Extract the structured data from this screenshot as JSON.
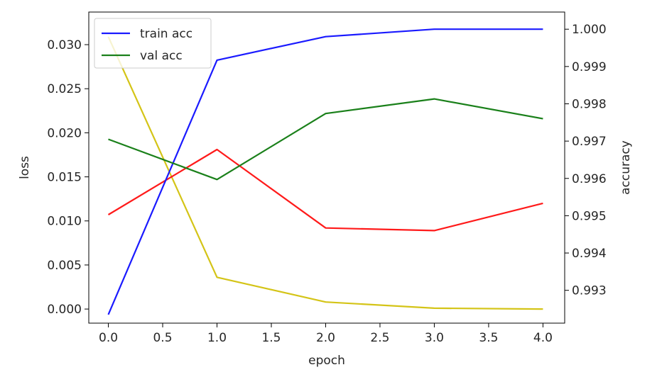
{
  "chart_data": {
    "type": "line",
    "title": "",
    "x": [
      0,
      1,
      2,
      3,
      4
    ],
    "xlabel": "epoch",
    "xlim": [
      -0.18,
      4.2
    ],
    "xticks": [
      0.0,
      0.5,
      1.0,
      1.5,
      2.0,
      2.5,
      3.0,
      3.5,
      4.0
    ],
    "xtick_labels": [
      "0.0",
      "0.5",
      "1.0",
      "1.5",
      "2.0",
      "2.5",
      "3.0",
      "3.5",
      "4.0"
    ],
    "y_left": {
      "label": "loss",
      "lim": [
        -0.0016,
        0.0337
      ],
      "ticks": [
        0.0,
        0.005,
        0.01,
        0.015,
        0.02,
        0.025,
        0.03
      ],
      "tick_labels": [
        "0.000",
        "0.005",
        "0.010",
        "0.015",
        "0.020",
        "0.025",
        "0.030"
      ]
    },
    "y_right": {
      "label": "accuracy",
      "lim": [
        0.99212,
        1.00046
      ],
      "ticks": [
        0.993,
        0.994,
        0.995,
        0.996,
        0.997,
        0.998,
        0.999,
        1.0
      ],
      "tick_labels": [
        "0.993",
        "0.994",
        "0.995",
        "0.996",
        "0.997",
        "0.998",
        "0.999",
        "1.000"
      ]
    },
    "series": [
      {
        "axis": "left",
        "color": "#d4c417",
        "values": [
          0.0309,
          0.0036,
          0.0008,
          0.0001,
          0.0
        ]
      },
      {
        "axis": "left",
        "color": "#ff1a1a",
        "values": [
          0.0107,
          0.0181,
          0.0092,
          0.0089,
          0.012
        ]
      },
      {
        "axis": "right",
        "name": "train acc",
        "color": "#1a1aff",
        "values": [
          0.99235,
          0.99917,
          0.9998,
          1.0,
          1.0
        ]
      },
      {
        "axis": "right",
        "name": "val acc",
        "color": "#1a801a",
        "values": [
          0.99705,
          0.99597,
          0.99774,
          0.99813,
          0.9976
        ]
      }
    ],
    "legend": {
      "placement": "upper-left",
      "entries": [
        {
          "label": "train acc",
          "color": "#1a1aff"
        },
        {
          "label": "val acc",
          "color": "#1a801a"
        }
      ]
    },
    "grid": false
  }
}
